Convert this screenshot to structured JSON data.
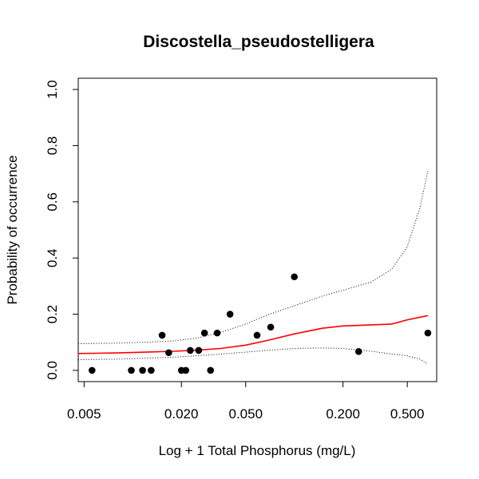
{
  "chart_data": {
    "type": "scatter",
    "title": "Discostella_pseudostelligera",
    "xlabel": "Log + 1 Total Phosphorus (mg/L)",
    "ylabel": "Probability of occurrence",
    "x_scale": "log",
    "xlim": [
      0.0046,
      0.76
    ],
    "ylim": [
      -0.04,
      1.04
    ],
    "x_ticks": [
      {
        "value": 0.005,
        "label": "0.005"
      },
      {
        "value": 0.02,
        "label": "0.020"
      },
      {
        "value": 0.05,
        "label": "0.050"
      },
      {
        "value": 0.2,
        "label": "0.200"
      },
      {
        "value": 0.5,
        "label": "0.500"
      }
    ],
    "y_ticks": [
      {
        "value": 0.0,
        "label": "0.0"
      },
      {
        "value": 0.2,
        "label": "0.2"
      },
      {
        "value": 0.4,
        "label": "0.4"
      },
      {
        "value": 0.6,
        "label": "0.6"
      },
      {
        "value": 0.8,
        "label": "0.8"
      },
      {
        "value": 1.0,
        "label": "1.0"
      }
    ],
    "points": [
      {
        "x": 0.0056,
        "y": 0.0
      },
      {
        "x": 0.0098,
        "y": 0.0
      },
      {
        "x": 0.0115,
        "y": 0.0
      },
      {
        "x": 0.013,
        "y": 0.0
      },
      {
        "x": 0.0152,
        "y": 0.125
      },
      {
        "x": 0.0167,
        "y": 0.063
      },
      {
        "x": 0.02,
        "y": 0.0
      },
      {
        "x": 0.0213,
        "y": 0.0
      },
      {
        "x": 0.0227,
        "y": 0.071
      },
      {
        "x": 0.0256,
        "y": 0.071
      },
      {
        "x": 0.0278,
        "y": 0.133
      },
      {
        "x": 0.0303,
        "y": 0.0
      },
      {
        "x": 0.0333,
        "y": 0.133
      },
      {
        "x": 0.04,
        "y": 0.2
      },
      {
        "x": 0.0588,
        "y": 0.125
      },
      {
        "x": 0.0714,
        "y": 0.154
      },
      {
        "x": 0.1,
        "y": 0.333
      },
      {
        "x": 0.25,
        "y": 0.067
      },
      {
        "x": 0.67,
        "y": 0.133
      }
    ],
    "series": [
      {
        "role": "fit",
        "color": "#ff0000",
        "style": "solid",
        "x": [
          0.0046,
          0.008,
          0.012,
          0.018,
          0.025,
          0.035,
          0.05,
          0.07,
          0.1,
          0.15,
          0.2,
          0.3,
          0.4,
          0.5,
          0.67
        ],
        "y": [
          0.06,
          0.062,
          0.065,
          0.068,
          0.072,
          0.078,
          0.09,
          0.108,
          0.13,
          0.15,
          0.158,
          0.162,
          0.165,
          0.18,
          0.195
        ]
      },
      {
        "role": "upper-ci",
        "color": "#000000",
        "style": "dotted",
        "x": [
          0.0046,
          0.008,
          0.012,
          0.018,
          0.025,
          0.035,
          0.05,
          0.07,
          0.1,
          0.15,
          0.2,
          0.3,
          0.4,
          0.5,
          0.6,
          0.67
        ],
        "y": [
          0.095,
          0.097,
          0.1,
          0.105,
          0.115,
          0.135,
          0.165,
          0.2,
          0.23,
          0.265,
          0.285,
          0.315,
          0.36,
          0.44,
          0.58,
          0.71
        ]
      },
      {
        "role": "lower-ci",
        "color": "#000000",
        "style": "dotted",
        "x": [
          0.0046,
          0.008,
          0.012,
          0.018,
          0.025,
          0.035,
          0.05,
          0.07,
          0.1,
          0.15,
          0.2,
          0.3,
          0.4,
          0.5,
          0.6,
          0.67
        ],
        "y": [
          0.038,
          0.04,
          0.043,
          0.047,
          0.052,
          0.058,
          0.065,
          0.072,
          0.078,
          0.08,
          0.078,
          0.068,
          0.058,
          0.052,
          0.04,
          0.022
        ]
      }
    ],
    "grid": false,
    "legend": "none"
  }
}
